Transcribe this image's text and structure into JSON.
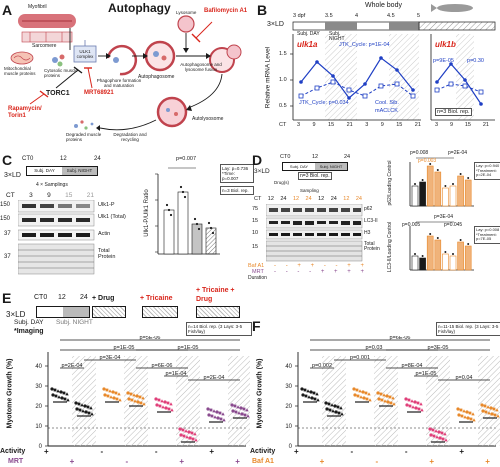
{
  "panels": {
    "A": {
      "letter": "A",
      "title": "Autophagy",
      "labels": {
        "myofibril": "Myofibril",
        "sarcomere": "Sarcomere",
        "mitochondria": "Mitochondrial muscle proteins",
        "cytosolic": "Cytosolic muscle proteins",
        "ulk1": "ULK1 complex",
        "torc1": "TORC1",
        "mrt": "MRT68921",
        "rapa": "Rapamycin/ Torin1",
        "phagophore": "Phagophore formation and maturation",
        "autophagosome": "Autophagosome",
        "lysosome": "Lysosome",
        "bafilo": "Bafilomycin A1",
        "fusion": "Autophagosome and lysosome fusion",
        "autolyso": "Autolysosome",
        "degradation": "Degradation and recycling",
        "degraded": "Degraded muscle proteins"
      }
    },
    "B": {
      "letter": "B",
      "whole_body": "Whole body",
      "ld": "3×LD",
      "dpf_ticks": [
        "3 dpf",
        "3.5",
        "4",
        "4.5",
        "5"
      ],
      "subj_day": "Subj. DAY",
      "subj_night": "Subj. NIGHT",
      "ylabel": "Relative mRNA Level",
      "ct_label": "CT",
      "ct_ticks_left": [
        "3",
        "9",
        "15",
        "21",
        "3",
        "9",
        "15",
        "21"
      ],
      "ct_ticks_right": [
        "3",
        "9",
        "15",
        "21"
      ],
      "gene_left": "ulk1a",
      "gene_right": "ulk1b",
      "jtk_cycle_left": "JTK_Cycle: p=1E-04",
      "jtk_cycle_left2": "JTK_Cycle: p=0.034",
      "cool_sib": "Cool. Sib.",
      "mclck": "mACLCK",
      "p_right1": "p=9E-05",
      "p_right2": "p=0.30",
      "reps": "n=3 Biol. rep.",
      "yticks": [
        "1.5",
        "1.0",
        "0.5"
      ]
    },
    "C": {
      "letter": "C",
      "ld": "3×LD",
      "ct0": "CT0",
      "ct12": "12",
      "ct24": "24",
      "subj_day": "Subj. DAY",
      "subj_night": "Subj. NIGHT",
      "sampling": "4 × Samplings",
      "ct_row": [
        "CT",
        "3",
        "9",
        "15",
        "21"
      ],
      "mw": [
        "150",
        "150",
        "37",
        "37"
      ],
      "bands": [
        "Ulk1-P",
        "Ulk1 (Total)",
        "Actin",
        "Total Protein"
      ],
      "ylabel": "Ulk1-P/Ulk1 Ratio",
      "p_value": "p=0.007",
      "stats": "Lay: p=0.736 *Time: p=0.007",
      "reps": "n=3 Biol. rep.",
      "xticks": [
        "CT",
        "3",
        "9",
        "15",
        "21"
      ],
      "yticks": [
        "1.5",
        "1.0",
        "0.5",
        "0.0"
      ]
    },
    "D": {
      "letter": "D",
      "ld": "3×LD",
      "ct0": "CT0",
      "ct12": "12",
      "ct24": "24",
      "subj_day": "Subj. DAY",
      "subj_night": "Subj. NIGHT",
      "reps": "n=3 Biol. rep.",
      "sampling": "Sampling",
      "drug": "Drug(s)",
      "ct_row": [
        "CT",
        "12",
        "24",
        "12",
        "24",
        "12",
        "24",
        "12",
        "24"
      ],
      "mw": [
        "75",
        "15",
        "10",
        "15"
      ],
      "bands": [
        "p62",
        "LC3-II",
        "H3",
        "Total Protein"
      ],
      "baf": "Baf A1",
      "mrt": "MRT",
      "duration": "Duration",
      "top_plot": {
        "ylabel": "p62/Loading Control",
        "p1": "p=0.008",
        "p2": "p=2E-04",
        "p3": "p=0.003",
        "stats": "Lay: p=0.940 *Treatment: p=2E-04"
      },
      "bottom_plot": {
        "ylabel": "LC3-II/Loading Control",
        "p1": "p=3E-04",
        "p2": "p=0.005",
        "p3": "p=0.045",
        "stats": "Lay: p=0.008 *Treatment: p=7E-05"
      },
      "signs": {
        "baf_row": [
          "-",
          "-",
          "+",
          "+",
          "-",
          "-",
          "+",
          "+"
        ],
        "mrt_row": [
          "-",
          "-",
          "-",
          "-",
          "+",
          "+",
          "+",
          "+"
        ]
      }
    },
    "E": {
      "letter": "E",
      "ld": "3×LD",
      "ct0": "CT0",
      "ct12": "12",
      "ct24": "24",
      "drug": "+ Drug",
      "tricaine": "+ Tricaine",
      "tricaine_drug": "+ Tricaine + Drug",
      "subj_day": "Subj. DAY",
      "subj_night": "Subj. NIGHT",
      "imaging": "*Imaging",
      "reps": "n=14 Biol. rep. (3 Lays: 3-5 Fish/lay)",
      "ylabel": "Myotome Growth (%)",
      "yticks": [
        "40",
        "30",
        "20",
        "10",
        "0"
      ],
      "p_values": [
        "p=5E-06",
        "p=1E-05",
        "p=1E-05",
        "p=2E-04",
        "p=3E-04",
        "p=6E-06",
        "p=1E-04",
        "p=2E-04"
      ],
      "activity_label": "Activity",
      "mrt_label": "MRT",
      "activity_row": [
        "+",
        "",
        "-",
        "",
        "-",
        "",
        "+",
        ""
      ],
      "mrt_row": [
        "",
        "+",
        "",
        "-",
        "",
        "+",
        "",
        "+"
      ]
    },
    "F": {
      "letter": "F",
      "reps": "n=11-15 Biol. rep. (3 Lays: 3-5 Fish/lay)",
      "ylabel": "Myotome Growth (%)",
      "yticks": [
        "40",
        "30",
        "20",
        "10",
        "0"
      ],
      "p_values": [
        "p=6E-06",
        "p=0.03",
        "p=3E-05",
        "p=0.002",
        "p=0.001",
        "p=8E-04",
        "p=1E-05",
        "p=0.04"
      ],
      "activity_label": "Activity",
      "baf_label": "Baf A1",
      "activity_row": [
        "+",
        "",
        "-",
        "",
        "-",
        "",
        "+",
        ""
      ],
      "baf_row": [
        "",
        "+",
        "",
        "-",
        "",
        "+",
        "",
        "+"
      ]
    }
  },
  "colors": {
    "black": "#1a1a1a",
    "blue": "#1f3fc4",
    "orange": "#e8892b",
    "pink": "#e0407a",
    "red": "#d9261c",
    "purple": "#8a4b8f",
    "grey": "#b8b8b8",
    "muscle": "#c0434d"
  }
}
